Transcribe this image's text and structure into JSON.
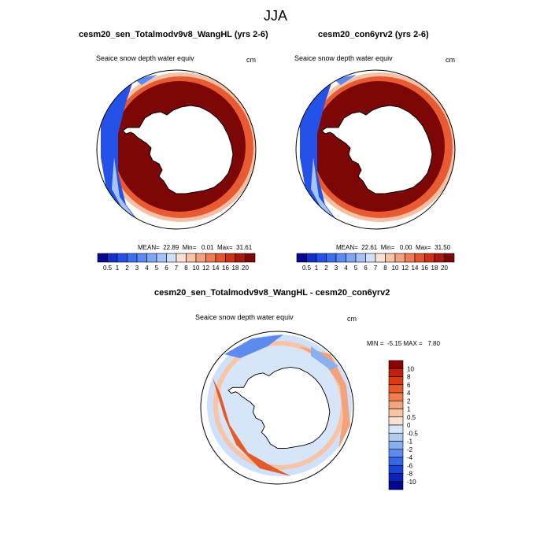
{
  "figure": {
    "season": "JJA"
  },
  "panels": [
    {
      "title": "cesm20_sen_Totalmodv9v8_WangHL (yrs 2-6)",
      "variable": "Seaice snow depth water equiv",
      "units": "cm",
      "stats": {
        "mean": "22.89",
        "min": "0.01",
        "max": "31.61"
      },
      "stats_text": "MEAN=  22.89  Min=   0.01  Max=  31.61"
    },
    {
      "title": "cesm20_con6yrv2 (yrs 2-6)",
      "variable": "Seaice snow depth water equiv",
      "units": "cm",
      "stats": {
        "mean": "22.61",
        "min": "0.00",
        "max": "31.50"
      },
      "stats_text": "MEAN=  22.61  Min=   0.00  Max=  31.50"
    }
  ],
  "diff_panel": {
    "title": "cesm20_sen_Totalmodv9v8_WangHL - cesm20_con6yrv2",
    "variable": "Seaice snow depth water equiv",
    "units": "cm",
    "stats": {
      "min": "-5.15",
      "max": "7.80"
    },
    "stats_text": "MIN =  -5.15 MAX =   7.80"
  },
  "colorbar_abs": {
    "labels": [
      "0.5",
      "1",
      "2",
      "3",
      "4",
      "5",
      "6",
      "7",
      "8",
      "10",
      "12",
      "14",
      "16",
      "18",
      "20"
    ],
    "colors": [
      "#08088c",
      "#1530c8",
      "#2452e8",
      "#3a70f0",
      "#5a8af2",
      "#7ea6f4",
      "#a6c4f7",
      "#cfe0fa",
      "#fbe2d4",
      "#f7c2a6",
      "#f3a07e",
      "#ee7a56",
      "#e2552f",
      "#cc3218",
      "#a81810",
      "#7d0606"
    ]
  },
  "colorbar_diff": {
    "labels": [
      "10",
      "8",
      "6",
      "4",
      "2",
      "1",
      "0.5",
      "0",
      "-0.5",
      "-1",
      "-2",
      "-4",
      "-6",
      "-8",
      "-10"
    ],
    "colors": [
      "#8b0000",
      "#c0200e",
      "#dc3a12",
      "#e65a2a",
      "#ef7e4f",
      "#f4a27c",
      "#f8c4a6",
      "#fbe1d0",
      "#d6e6f8",
      "#b0cbf2",
      "#8aaff0",
      "#5c8aee",
      "#3568e6",
      "#1a44d8",
      "#0c22b8",
      "#06068c"
    ]
  }
}
